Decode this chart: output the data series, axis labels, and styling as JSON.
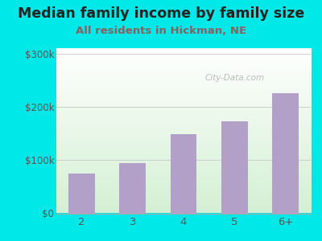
{
  "categories": [
    "2",
    "3",
    "4",
    "5",
    "6+"
  ],
  "values": [
    75000,
    95000,
    148000,
    173000,
    225000
  ],
  "bar_color": "#b3a0c8",
  "title": "Median family income by family size",
  "subtitle": "All residents in Hickman, NE",
  "title_color": "#222222",
  "subtitle_color": "#8b6060",
  "outer_bg": "#00e8e8",
  "plot_bg_top": "#f0f8f0",
  "plot_bg_bottom": "#d4edda",
  "yticks": [
    0,
    100000,
    200000,
    300000
  ],
  "ytick_labels": [
    "$0",
    "$100k",
    "$200k",
    "$300k"
  ],
  "ylim": [
    0,
    310000
  ],
  "watermark": "City-Data.com",
  "title_fontsize": 12.5,
  "subtitle_fontsize": 9.5,
  "grid_color": "#cccccc",
  "bottom_spine_color": "#aaaaaa"
}
